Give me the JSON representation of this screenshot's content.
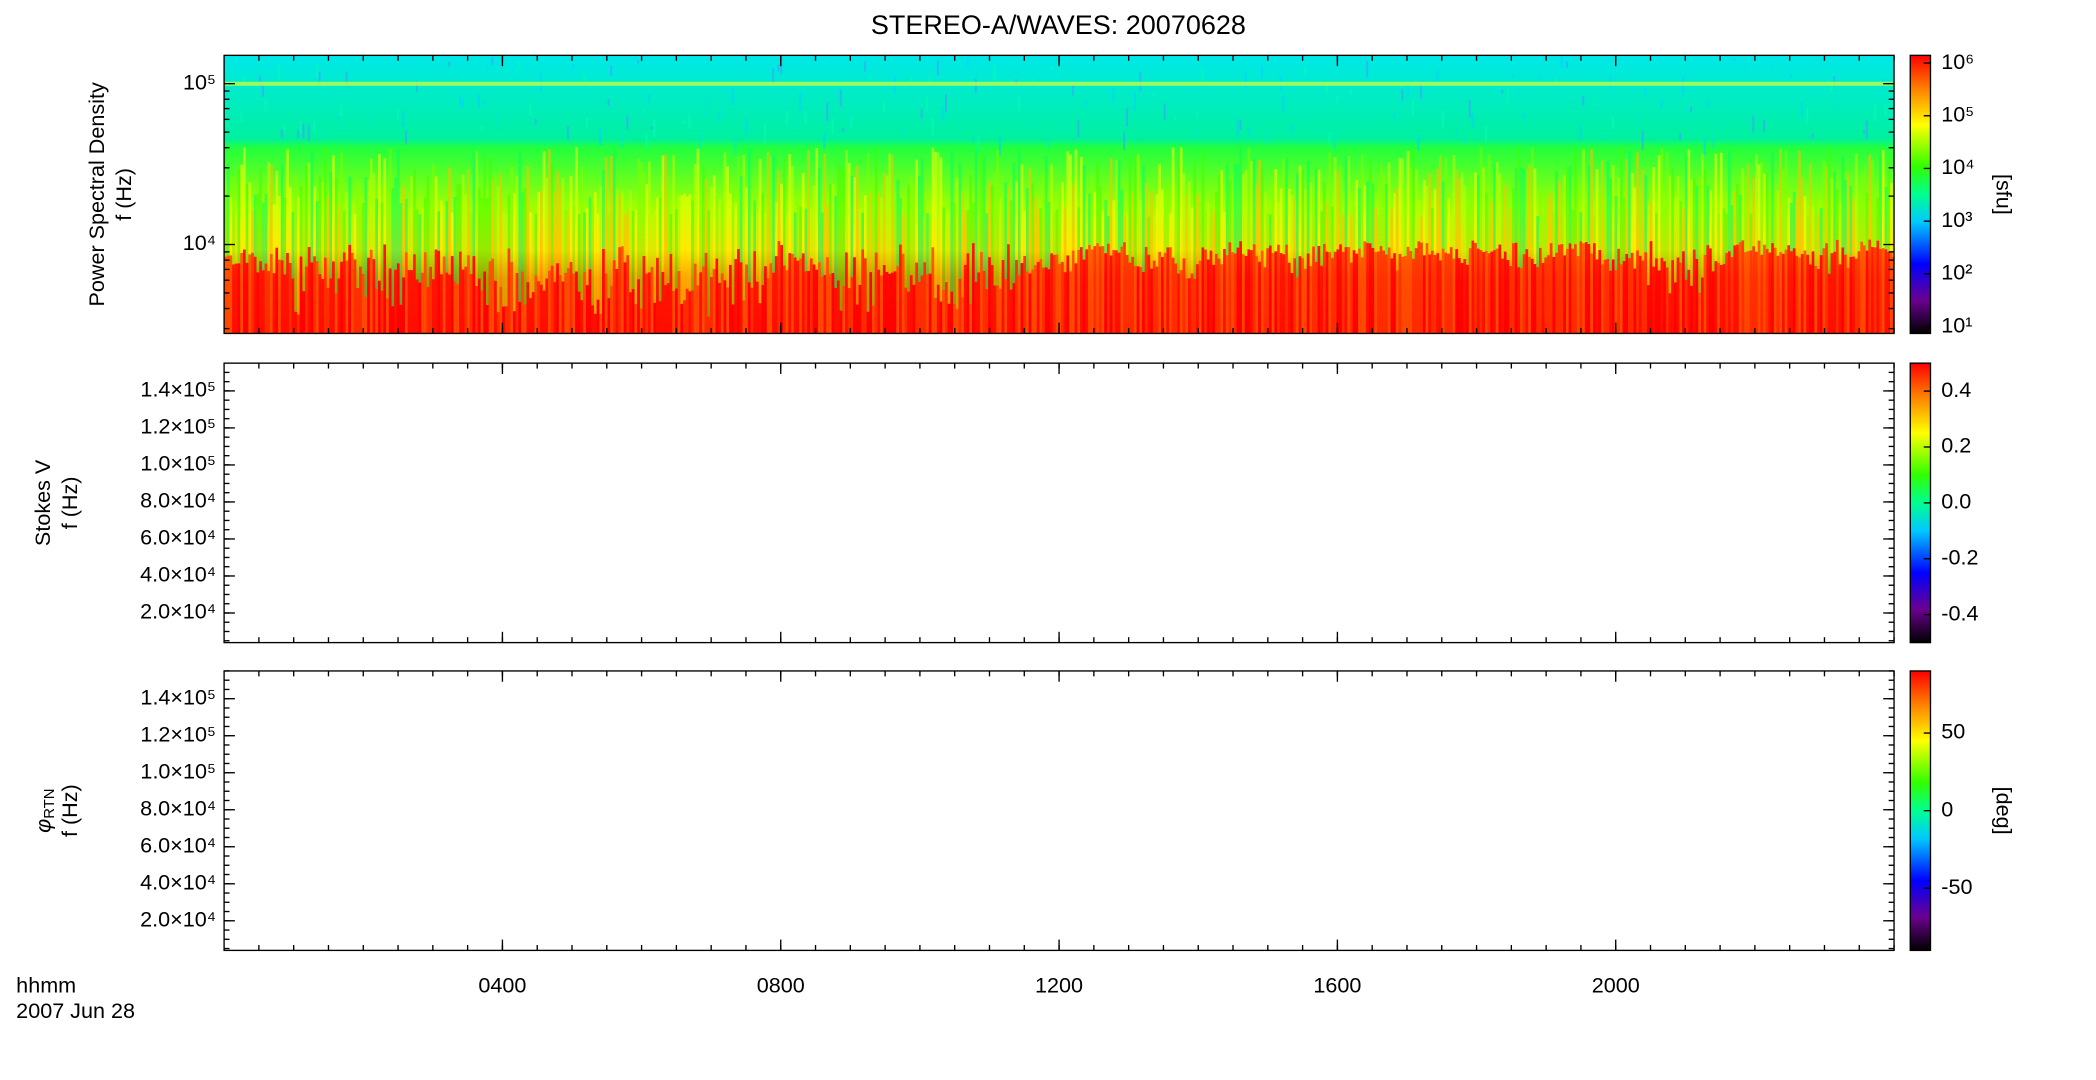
{
  "title": "STEREO-A/WAVES: 20070628",
  "time_axis": {
    "label": "hhmm",
    "date": "2007 Jun 28",
    "xlim": [
      0,
      24
    ],
    "xticks": [
      {
        "value": 4,
        "label": "0400"
      },
      {
        "value": 8,
        "label": "0800"
      },
      {
        "value": 12,
        "label": "1200"
      },
      {
        "value": 16,
        "label": "1600"
      },
      {
        "value": 20,
        "label": "2000"
      }
    ]
  },
  "chart_data": [
    {
      "type": "heatmap",
      "ylabel": "Power Spectral Density",
      "ylabel_unit": "f (Hz)",
      "y_log": true,
      "ylim": [
        2800,
        150000
      ],
      "yticks": [
        {
          "value": 10000,
          "label": "10⁴"
        },
        {
          "value": 100000,
          "label": "10⁵"
        }
      ],
      "colorbar": {
        "log": true,
        "lim": [
          7.4,
          1400000
        ],
        "label": "[sfu]",
        "ticks": [
          {
            "value": 10,
            "label": "10¹"
          },
          {
            "value": 100,
            "label": "10²"
          },
          {
            "value": 1000,
            "label": "10³"
          },
          {
            "value": 10000,
            "label": "10⁴"
          },
          {
            "value": 100000,
            "label": "10⁵"
          },
          {
            "value": 1000000,
            "label": "10⁶"
          }
        ]
      }
    },
    {
      "type": "heatmap",
      "ylabel": "Stokes V",
      "ylabel_unit": "f (Hz)",
      "y_log": false,
      "ylim": [
        4000,
        155000
      ],
      "yticks": [
        {
          "value": 20000,
          "label": "2.0×10⁴"
        },
        {
          "value": 40000,
          "label": "4.0×10⁴"
        },
        {
          "value": 60000,
          "label": "6.0×10⁴"
        },
        {
          "value": 80000,
          "label": "8.0×10⁴"
        },
        {
          "value": 100000,
          "label": "1.0×10⁵"
        },
        {
          "value": 120000,
          "label": "1.2×10⁵"
        },
        {
          "value": 140000,
          "label": "1.4×10⁵"
        }
      ],
      "colorbar": {
        "log": false,
        "lim": [
          -0.5,
          0.5
        ],
        "ticks": [
          -0.4,
          -0.2,
          {
            "value": 0,
            "label": "0.0"
          },
          0.2,
          0.4
        ]
      }
    },
    {
      "type": "heatmap",
      "ylabel_symbol": "φ",
      "ylabel_subscript": "RTN",
      "ylabel_unit": "f (Hz)",
      "y_log": false,
      "ylim": [
        4000,
        155000
      ],
      "yticks": [
        {
          "value": 20000,
          "label": "2.0×10⁴"
        },
        {
          "value": 40000,
          "label": "4.0×10⁴"
        },
        {
          "value": 60000,
          "label": "6.0×10⁴"
        },
        {
          "value": 80000,
          "label": "8.0×10⁴"
        },
        {
          "value": 100000,
          "label": "1.0×10⁵"
        },
        {
          "value": 120000,
          "label": "1.2×10⁵"
        },
        {
          "value": 140000,
          "label": "1.4×10⁵"
        }
      ],
      "colorbar": {
        "log": false,
        "lim": [
          -90,
          90
        ],
        "label": "[deg]",
        "ticks": [
          -50,
          0,
          50
        ]
      }
    }
  ]
}
